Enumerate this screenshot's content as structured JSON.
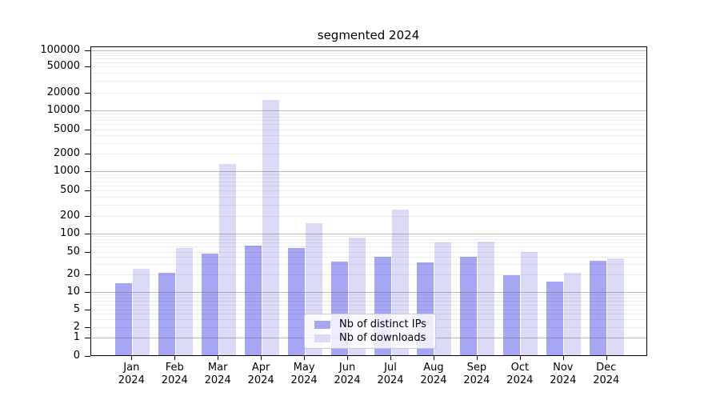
{
  "figure": {
    "background": "#ffffff"
  },
  "chart_data": {
    "type": "bar",
    "title": "segmented 2024",
    "categories": [
      "Jan",
      "Feb",
      "Mar",
      "Apr",
      "May",
      "Jun",
      "Jul",
      "Aug",
      "Sep",
      "Oct",
      "Nov",
      "Dec"
    ],
    "category_year": "2024",
    "series": [
      {
        "name": "Nb of distinct IPs",
        "color": "#a6a6f4",
        "values": [
          14,
          21,
          46,
          63,
          58,
          33,
          40,
          32,
          40,
          19,
          15,
          34
        ]
      },
      {
        "name": "Nb of downloads",
        "color": "#dbdbf8",
        "values": [
          25,
          57,
          1350,
          15000,
          150,
          85,
          250,
          71,
          73,
          49,
          21,
          38
        ]
      }
    ],
    "xlabel": "",
    "ylabel": "",
    "yscale": "symlog",
    "yticks": [
      0,
      1,
      2,
      5,
      10,
      20,
      50,
      100,
      200,
      500,
      1000,
      2000,
      5000,
      10000,
      20000,
      50000,
      100000
    ],
    "ylim": [
      0,
      120000
    ],
    "grid": {
      "major": true,
      "minor": true
    },
    "legend": {
      "position": "lower-center-inside",
      "entries": [
        "Nb of distinct IPs",
        "Nb of downloads"
      ]
    }
  }
}
